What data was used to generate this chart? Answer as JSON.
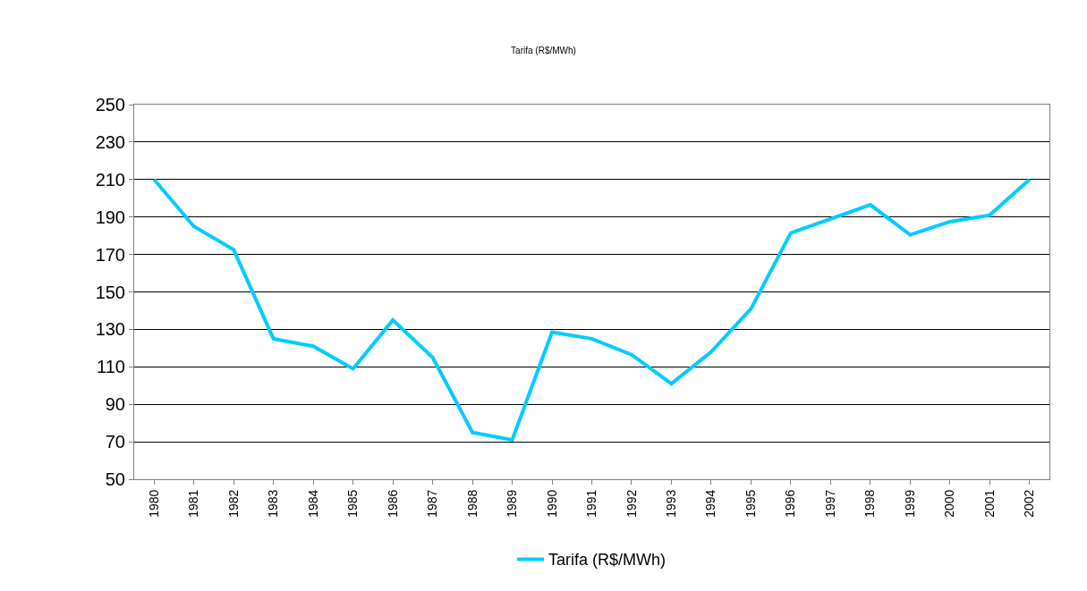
{
  "chart_data": {
    "type": "line",
    "title": "Tarifa (R$/MWh)",
    "categories": [
      "1980",
      "1981",
      "1982",
      "1983",
      "1984",
      "1985",
      "1986",
      "1987",
      "1988",
      "1989",
      "1990",
      "1991",
      "1992",
      "1993",
      "1994",
      "1995",
      "1996",
      "1997",
      "1998",
      "1999",
      "2000",
      "2001",
      "2002"
    ],
    "series": [
      {
        "name": "Tarifa (R$/MWh)",
        "color": "#00ccff",
        "values": [
          210,
          185,
          172.5,
          125,
          121,
          109,
          135,
          115,
          75,
          71,
          128.5,
          125,
          116.5,
          101,
          118,
          141,
          181.5,
          189,
          196.5,
          180.5,
          187.5,
          191,
          210
        ]
      }
    ],
    "ylim": [
      50,
      250
    ],
    "yticks": [
      50,
      70,
      90,
      110,
      130,
      150,
      170,
      190,
      210,
      230,
      250
    ],
    "grid": "y",
    "legend": "bottom",
    "marker": "none",
    "line_style": "solid"
  }
}
